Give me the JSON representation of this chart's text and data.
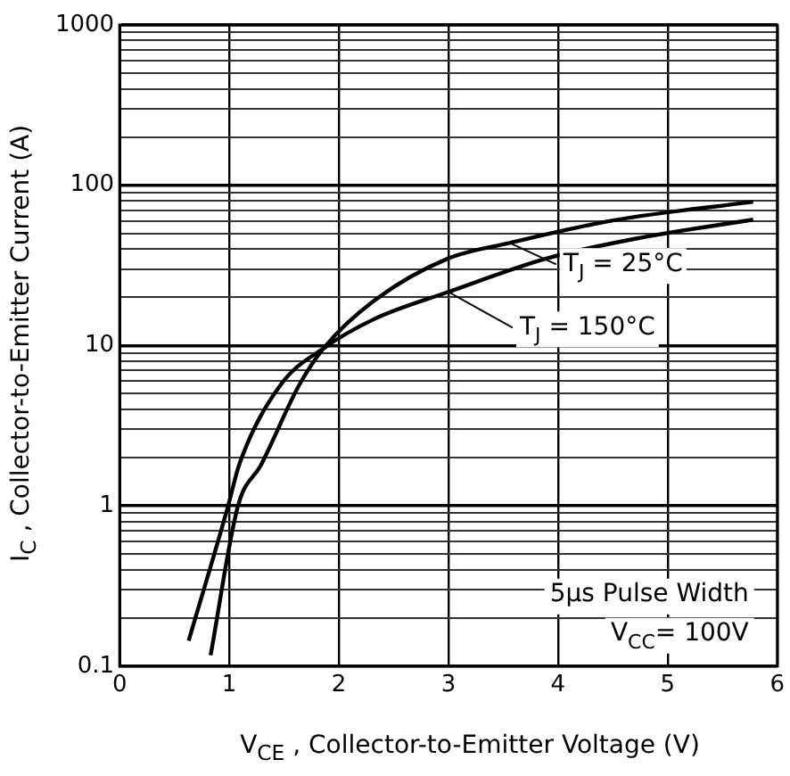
{
  "chart_data": {
    "type": "line",
    "xlabel": "V$_{CE}$ , Collector-to-Emitter Voltage (V)",
    "ylabel": "I$_{C}$ , Collector-to-Emitter Current (A)",
    "series": [
      {
        "color": "#000000",
        "x": [
          0.63,
          0.99,
          1.09,
          1.47,
          1.86,
          2.32,
          3.0,
          3.9,
          4.75,
          5.78
        ],
        "values": [
          0.144,
          1.0,
          1.8,
          5.7,
          9.6,
          14.6,
          21.6,
          35,
          47,
          61
        ]
      },
      {
        "color": "#000000",
        "x": [
          0.83,
          1.08,
          1.29,
          1.64,
          1.86,
          2.32,
          3.0,
          3.56,
          4.48,
          5.78
        ],
        "values": [
          0.117,
          1.0,
          1.8,
          5.7,
          9.6,
          19,
          35,
          43.7,
          60,
          79
        ]
      }
    ],
    "log": "y",
    "xlim": [
      0,
      6
    ],
    "xticks": [
      0,
      1,
      2,
      3,
      4,
      5,
      6
    ],
    "ylim": [
      0.1,
      1000
    ],
    "yticks": [
      0.1,
      {
        "value": 0.2,
        "label": null
      },
      {
        "value": 0.3,
        "label": null
      },
      {
        "value": 0.4,
        "label": null
      },
      {
        "value": 0.5,
        "label": null
      },
      {
        "value": 0.6,
        "label": null
      },
      {
        "value": 0.7,
        "label": null
      },
      {
        "value": 0.8,
        "label": null
      },
      {
        "value": 0.9,
        "label": null
      },
      1,
      {
        "value": 2,
        "label": null
      },
      {
        "value": 3,
        "label": null
      },
      {
        "value": 4,
        "label": null
      },
      {
        "value": 5,
        "label": null
      },
      {
        "value": 6,
        "label": null
      },
      {
        "value": 7,
        "label": null
      },
      {
        "value": 8,
        "label": null
      },
      {
        "value": 9,
        "label": null
      },
      10,
      {
        "value": 20,
        "label": null
      },
      {
        "value": 30,
        "label": null
      },
      {
        "value": 40,
        "label": null
      },
      {
        "value": 50,
        "label": null
      },
      {
        "value": 60,
        "label": null
      },
      {
        "value": 70,
        "label": null
      },
      {
        "value": 80,
        "label": null
      },
      {
        "value": 90,
        "label": null
      },
      100,
      {
        "value": 200,
        "label": null
      },
      {
        "value": 300,
        "label": null
      },
      {
        "value": 400,
        "label": null
      },
      {
        "value": 500,
        "label": null
      },
      {
        "value": 600,
        "label": null
      },
      {
        "value": 700,
        "label": null
      },
      {
        "value": 800,
        "label": null
      },
      {
        "value": 900,
        "label": null
      },
      1000
    ],
    "grid": true,
    "legend": false,
    "marker": "none",
    "line_style": "solid",
    "annotations": [
      {
        "text": "T$_{J}$ = 25°C",
        "x": 3.56,
        "y": 43.7
      },
      {
        "text": "T$_{J}$ = 150°C",
        "x": 3.0,
        "y": 21.6
      },
      "5µs Pulse Width",
      "V$_{CC}$= 100V"
    ]
  }
}
